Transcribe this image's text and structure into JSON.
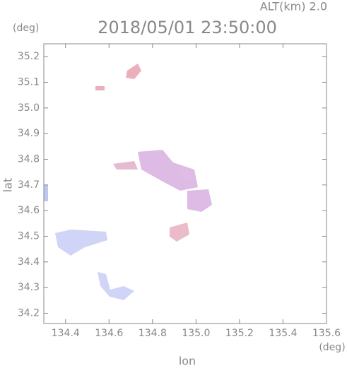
{
  "chart_data": {
    "type": "radar-map",
    "title": "2018/05/01 23:50:00",
    "subtitle": "ALT(km) 2.0",
    "y_unit": "(deg)",
    "x_unit": "(deg)",
    "xlabel": "lon",
    "ylabel": "lat",
    "xlim": [
      134.3,
      135.6
    ],
    "xticks": [
      134.4,
      134.6,
      134.8,
      {
        "value": 135.0,
        "label": "135.0"
      },
      135.2,
      135.4,
      135.6
    ],
    "ylim": [
      34.16,
      35.25
    ],
    "yticks": [
      34.2,
      34.3,
      34.4,
      34.5,
      34.6,
      34.7,
      34.8,
      34.9,
      {
        "value": 35.0,
        "label": "35.0"
      },
      35.1,
      35.2
    ],
    "frame_color": "#888888"
  }
}
